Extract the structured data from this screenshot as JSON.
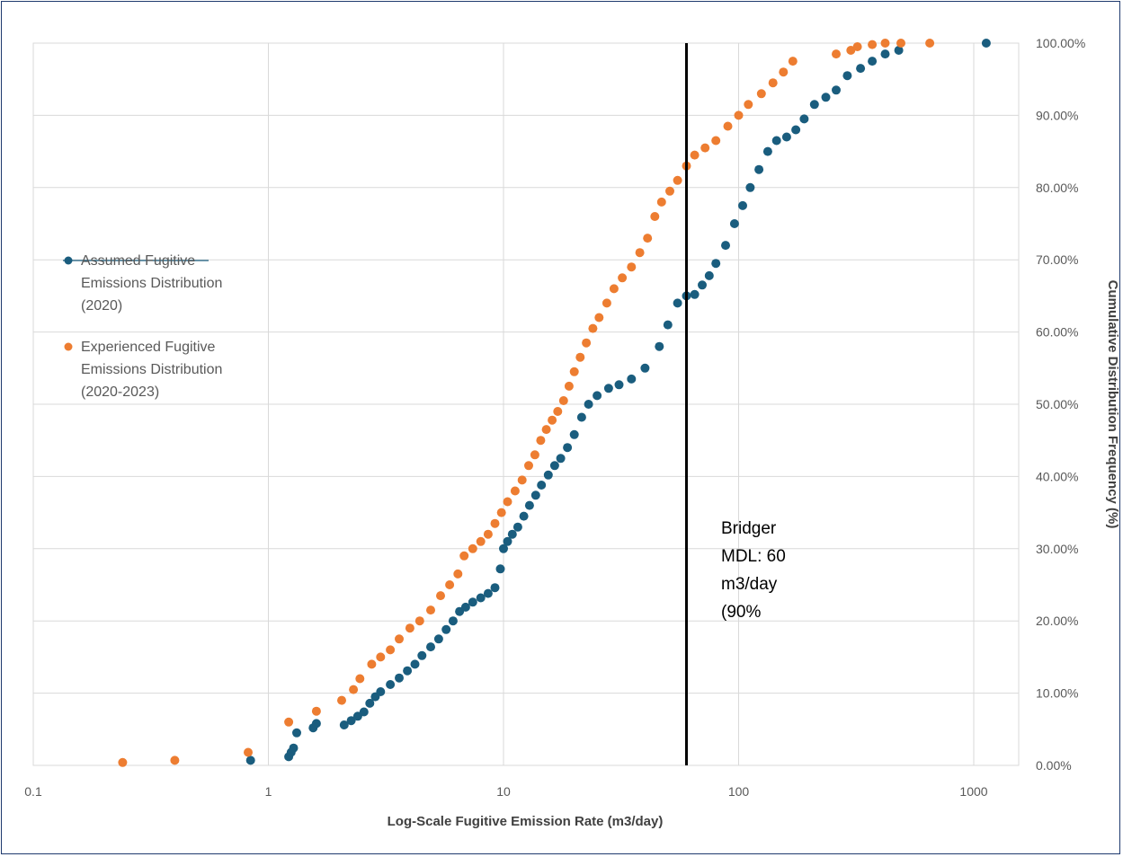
{
  "chart_data": {
    "type": "scatter",
    "title": "",
    "xlabel": "Log-Scale Fugitive Emission Rate (m3/day)",
    "ylabel": "Cumulative Distribution Frequency (%)",
    "x_scale": "log",
    "xlim": [
      0.1,
      1500
    ],
    "ylim": [
      0,
      1
    ],
    "x_ticks": [
      "0.1",
      "1",
      "10",
      "100",
      "1000"
    ],
    "y_ticks": [
      "0.00%",
      "10.00%",
      "20.00%",
      "30.00%",
      "40.00%",
      "50.00%",
      "60.00%",
      "70.00%",
      "80.00%",
      "90.00%",
      "100.00%"
    ],
    "y_axis_side": "right",
    "grid": true,
    "legend_position": "left",
    "vertical_line": {
      "x": 60,
      "color": "#000000"
    },
    "annotation_lines": [
      "Bridger",
      "MDL: 60",
      "m3/day",
      "(90%"
    ],
    "series": [
      {
        "name_lines": [
          "Assumed Fugitive",
          "Emissions Distribution",
          "(2020)"
        ],
        "color": "#1a5d7e",
        "x": [
          0.84,
          1.22,
          1.25,
          1.28,
          1.32,
          1.55,
          1.6,
          2.1,
          2.25,
          2.4,
          2.55,
          2.7,
          2.85,
          3.0,
          3.3,
          3.6,
          3.9,
          4.2,
          4.5,
          4.9,
          5.3,
          5.7,
          6.1,
          6.5,
          6.9,
          7.4,
          8.0,
          8.6,
          9.2,
          9.7,
          10.0,
          10.4,
          10.9,
          11.5,
          12.2,
          12.9,
          13.7,
          14.5,
          15.5,
          16.5,
          17.5,
          18.7,
          20.0,
          21.5,
          23.0,
          25.0,
          28.0,
          31.0,
          35.0,
          40.0,
          46.0,
          50.0,
          55.0,
          60.0,
          65.0,
          70.0,
          75.0,
          80.0,
          88.0,
          96.0,
          104.0,
          112.0,
          122.0,
          133.0,
          145.0,
          160.0,
          175.0,
          190.0,
          210.0,
          235.0,
          260.0,
          290.0,
          330.0,
          370.0,
          420.0,
          480.0,
          1130.0
        ],
        "y": [
          0.007,
          0.012,
          0.018,
          0.024,
          0.045,
          0.052,
          0.058,
          0.056,
          0.062,
          0.068,
          0.074,
          0.086,
          0.095,
          0.102,
          0.112,
          0.121,
          0.131,
          0.14,
          0.152,
          0.164,
          0.175,
          0.188,
          0.2,
          0.213,
          0.219,
          0.226,
          0.232,
          0.238,
          0.246,
          0.272,
          0.3,
          0.31,
          0.32,
          0.33,
          0.345,
          0.36,
          0.374,
          0.388,
          0.402,
          0.415,
          0.425,
          0.44,
          0.458,
          0.482,
          0.5,
          0.512,
          0.522,
          0.527,
          0.535,
          0.55,
          0.58,
          0.61,
          0.64,
          0.65,
          0.652,
          0.665,
          0.678,
          0.695,
          0.72,
          0.75,
          0.775,
          0.8,
          0.825,
          0.85,
          0.865,
          0.87,
          0.88,
          0.895,
          0.915,
          0.925,
          0.935,
          0.955,
          0.965,
          0.975,
          0.985,
          0.99,
          1.0
        ]
      },
      {
        "name_lines": [
          "Experienced Fugitive",
          "Emissions Distribution",
          "(2020-2023)"
        ],
        "color": "#ed7d31",
        "x": [
          0.24,
          0.4,
          0.82,
          1.22,
          1.6,
          2.05,
          2.3,
          2.45,
          2.75,
          3.0,
          3.3,
          3.6,
          4.0,
          4.4,
          4.9,
          5.4,
          5.9,
          6.4,
          6.8,
          7.4,
          8.0,
          8.6,
          9.2,
          9.8,
          10.4,
          11.2,
          12.0,
          12.8,
          13.6,
          14.4,
          15.2,
          16.1,
          17.0,
          18.0,
          19.0,
          20.0,
          21.2,
          22.5,
          24.0,
          25.5,
          27.5,
          29.5,
          32.0,
          35.0,
          38.0,
          41.0,
          44.0,
          47.0,
          51.0,
          55.0,
          60.0,
          65.0,
          72.0,
          80.0,
          90.0,
          100.0,
          110.0,
          125.0,
          140.0,
          155.0,
          170.0,
          260.0,
          300.0,
          320.0,
          370.0,
          420.0,
          490.0,
          650.0
        ],
        "y": [
          0.004,
          0.007,
          0.018,
          0.06,
          0.075,
          0.09,
          0.105,
          0.12,
          0.14,
          0.15,
          0.16,
          0.175,
          0.19,
          0.2,
          0.215,
          0.235,
          0.25,
          0.265,
          0.29,
          0.3,
          0.31,
          0.32,
          0.335,
          0.35,
          0.365,
          0.38,
          0.395,
          0.415,
          0.43,
          0.45,
          0.465,
          0.478,
          0.49,
          0.505,
          0.525,
          0.545,
          0.565,
          0.585,
          0.605,
          0.62,
          0.64,
          0.66,
          0.675,
          0.69,
          0.71,
          0.73,
          0.76,
          0.78,
          0.795,
          0.81,
          0.83,
          0.845,
          0.855,
          0.865,
          0.885,
          0.9,
          0.915,
          0.93,
          0.945,
          0.96,
          0.975,
          0.985,
          0.99,
          0.995,
          0.998,
          1.0,
          1.0,
          1.0
        ]
      }
    ]
  }
}
